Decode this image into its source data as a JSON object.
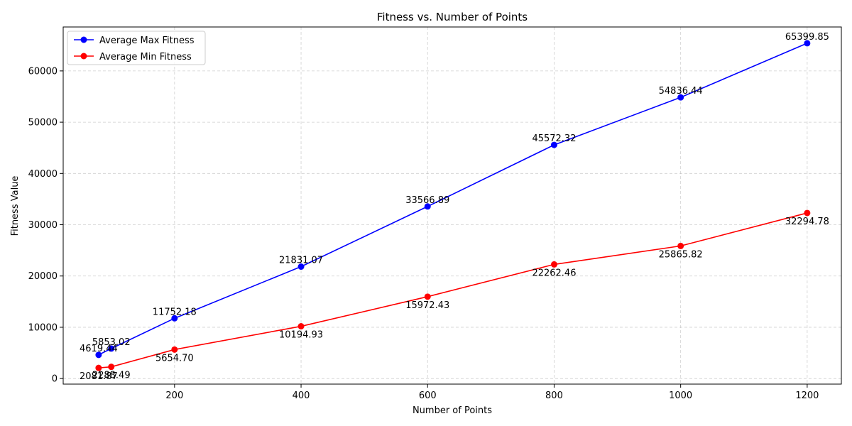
{
  "chart_data": {
    "type": "line",
    "title": "Fitness vs. Number of Points",
    "xlabel": "Number of Points",
    "ylabel": "Fitness Value",
    "xlim": [
      24,
      1254
    ],
    "ylim": [
      -1084,
      68569
    ],
    "xticks": [
      200,
      400,
      600,
      800,
      1000,
      1200
    ],
    "yticks": [
      0,
      10000,
      20000,
      30000,
      40000,
      50000,
      60000
    ],
    "grid": true,
    "legend_position": "top-left",
    "x": [
      80,
      100,
      200,
      400,
      600,
      800,
      1000,
      1200
    ],
    "series": [
      {
        "name": "Average Max Fitness",
        "color": "#0000ff",
        "label_position": "above",
        "values": [
          4619.44,
          5853.02,
          11752.18,
          21831.07,
          33566.89,
          45572.32,
          54836.44,
          65399.85
        ],
        "labels": [
          "4619.44",
          "5853.02",
          "11752.18",
          "21831.07",
          "33566.89",
          "45572.32",
          "54836.44",
          "65399.85"
        ]
      },
      {
        "name": "Average Min Fitness",
        "color": "#ff0000",
        "label_position": "below",
        "values": [
          2081.87,
          2288.49,
          5654.7,
          10194.93,
          15972.43,
          22262.46,
          25865.82,
          32294.78
        ],
        "labels": [
          "2081.87",
          "2288.49",
          "5654.70",
          "10194.93",
          "15972.43",
          "22262.46",
          "25865.82",
          "32294.78"
        ]
      }
    ]
  }
}
